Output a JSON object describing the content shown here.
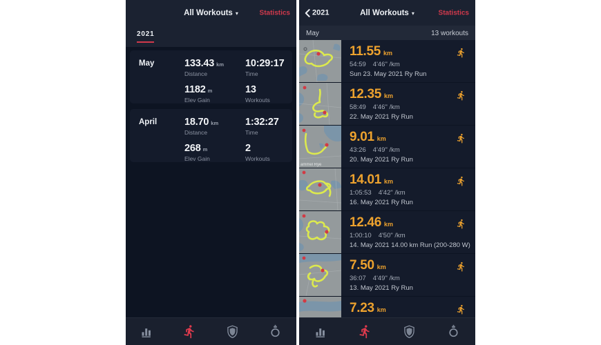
{
  "colors": {
    "accent_red": "#dd3a4d",
    "accent_orange": "#eda22e",
    "phone_bg": "#0d1422",
    "header_bg": "#1b2231",
    "card_bg": "#141b2b"
  },
  "left_screen": {
    "header": {
      "title": "All Workouts",
      "caret": "▾",
      "statistics_label": "Statistics"
    },
    "year_tab": "2021",
    "months": [
      {
        "name": "May",
        "stats": [
          {
            "value": "133.43",
            "unit": "km",
            "label": "Distance"
          },
          {
            "value": "10:29:17",
            "unit": "",
            "label": "Time"
          },
          {
            "value": "1182",
            "unit": "m",
            "label": "Elev Gain"
          },
          {
            "value": "13",
            "unit": "",
            "label": "Workouts"
          }
        ]
      },
      {
        "name": "April",
        "stats": [
          {
            "value": "18.70",
            "unit": "km",
            "label": "Distance"
          },
          {
            "value": "1:32:27",
            "unit": "",
            "label": "Time"
          },
          {
            "value": "268",
            "unit": "m",
            "label": "Elev Gain"
          },
          {
            "value": "2",
            "unit": "",
            "label": "Workouts"
          }
        ]
      }
    ]
  },
  "right_screen": {
    "header": {
      "back_label": "2021",
      "title": "All Workouts",
      "caret": "▾",
      "statistics_label": "Statistics"
    },
    "subheader": {
      "month": "May",
      "workout_count": "13 workouts"
    },
    "workouts": [
      {
        "distance": "11.55",
        "unit": "km",
        "time": "54:59",
        "pace": "4'46\" /km",
        "date": "Sun 23. May 2021 Ry Run",
        "map_label": ""
      },
      {
        "distance": "12.35",
        "unit": "km",
        "time": "58:49",
        "pace": "4'46\" /km",
        "date": "22. May 2021 Ry Run",
        "map_label": ""
      },
      {
        "distance": "9.01",
        "unit": "km",
        "time": "43:26",
        "pace": "4'49\" /km",
        "date": "20. May 2021 Ry Run",
        "map_label": "ammel Rye"
      },
      {
        "distance": "14.01",
        "unit": "km",
        "time": "1:05:53",
        "pace": "4'42\" /km",
        "date": "16. May 2021 Ry Run",
        "map_label": ""
      },
      {
        "distance": "12.46",
        "unit": "km",
        "time": "1:00:10",
        "pace": "4'50\" /km",
        "date": "14. May 2021 14.00 km Run (200-280 W)",
        "map_label": ""
      },
      {
        "distance": "7.50",
        "unit": "km",
        "time": "36:07",
        "pace": "4'49\" /km",
        "date": "13. May 2021 Ry Run",
        "map_label": ""
      },
      {
        "distance": "7.23",
        "unit": "km",
        "time": "",
        "pace": "",
        "date": "",
        "map_label": ""
      }
    ]
  },
  "tabbar": {
    "icons": [
      "bar-chart",
      "runner",
      "shield",
      "watch"
    ],
    "active_icon": "runner"
  }
}
